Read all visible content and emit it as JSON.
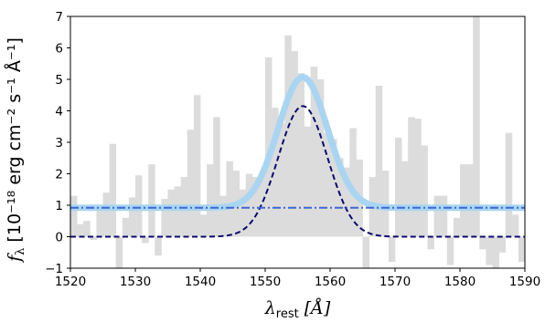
{
  "chart_data": {
    "type": "bar",
    "xlabel": {
      "symbol": "λ",
      "subscript": "rest",
      "unit": "[Å]"
    },
    "ylabel": {
      "symbol": "f",
      "subscript": "λ",
      "unit": "[10⁻¹⁸ erg cm⁻² s⁻¹ Å⁻¹]"
    },
    "xlim": [
      1520,
      1590
    ],
    "ylim": [
      -1,
      7
    ],
    "xticks": [
      1520,
      1530,
      1540,
      1550,
      1560,
      1570,
      1580,
      1590
    ],
    "yticks": [
      -1,
      0,
      1,
      2,
      3,
      4,
      5,
      6,
      7
    ],
    "bin_width": 1,
    "spectrum": {
      "x": [
        1520,
        1521,
        1522,
        1523,
        1524,
        1525,
        1526,
        1527,
        1528,
        1529,
        1530,
        1531,
        1532,
        1533,
        1534,
        1535,
        1536,
        1537,
        1538,
        1539,
        1540,
        1541,
        1542,
        1543,
        1544,
        1545,
        1546,
        1547,
        1548,
        1549,
        1550,
        1551,
        1552,
        1553,
        1554,
        1555,
        1556,
        1557,
        1558,
        1559,
        1560,
        1561,
        1562,
        1563,
        1564,
        1565,
        1566,
        1567,
        1568,
        1569,
        1570,
        1571,
        1572,
        1573,
        1574,
        1575,
        1576,
        1577,
        1578,
        1579,
        1580,
        1581,
        1582,
        1583,
        1584,
        1585,
        1586,
        1587,
        1588,
        1589
      ],
      "values": [
        1.3,
        0.4,
        0.5,
        -0.1,
        1.0,
        1.4,
        2.95,
        -1.0,
        0.6,
        1.25,
        1.95,
        -0.2,
        2.3,
        -0.6,
        1.2,
        1.5,
        1.6,
        1.9,
        3.4,
        4.5,
        0.7,
        2.3,
        3.8,
        1.3,
        2.4,
        2.1,
        1.5,
        2.0,
        1.9,
        2.0,
        5.7,
        4.1,
        3.6,
        6.4,
        5.9,
        5.2,
        3.5,
        5.4,
        5.0,
        3.3,
        3.1,
        2.5,
        2.2,
        3.45,
        2.45,
        -1.0,
        1.9,
        4.8,
        2.1,
        -0.8,
        3.15,
        2.4,
        3.8,
        3.75,
        2.9,
        -0.4,
        1.3,
        1.3,
        -0.9,
        0.6,
        2.3,
        2.3,
        7.0,
        -0.4,
        -0.9,
        -1.0,
        -0.5,
        3.3,
        0.7,
        -0.8
      ]
    },
    "model": {
      "continuum": 0.92,
      "gaussian_center": 1555.8,
      "gaussian_amplitude": 4.15,
      "gaussian_sigma": 3.8
    },
    "series": [
      {
        "style": "thick light-blue solid",
        "color": "#a9d5f2",
        "shows": "continuum + gaussian"
      },
      {
        "style": "dashed",
        "color": "#0a0a6e",
        "shows": "gaussian"
      },
      {
        "style": "dash-dot",
        "color": "#3d67d6",
        "shows": "continuum"
      }
    ],
    "bar_color": "#dcdcdc",
    "grid": false,
    "legend": "none"
  }
}
